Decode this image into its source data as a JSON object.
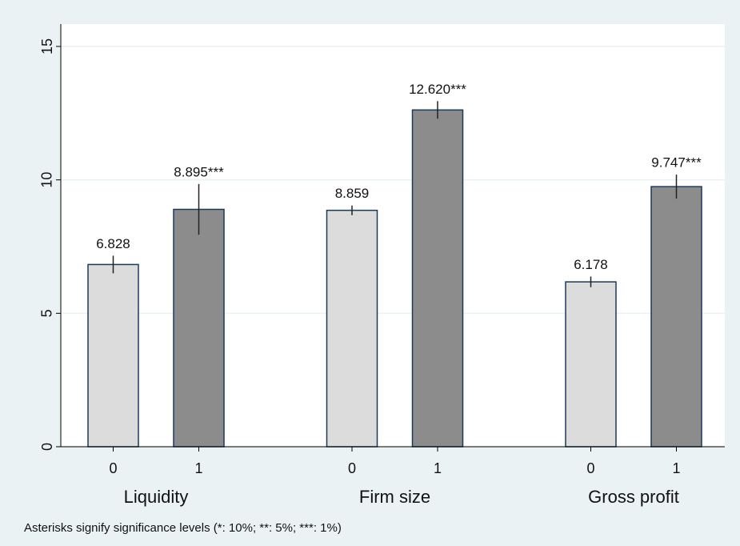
{
  "chart_data": {
    "type": "bar",
    "categories": [
      "Liquidity",
      "Firm size",
      "Gross profit"
    ],
    "series": [
      {
        "name": "0",
        "color": "#dcdcdc",
        "values": [
          6.828,
          8.859,
          6.178
        ],
        "value_labels": [
          "6.828",
          "8.859",
          "6.178"
        ],
        "errors": [
          0.33,
          0.18,
          0.2
        ]
      },
      {
        "name": "1",
        "color": "#8c8c8c",
        "values": [
          8.895,
          12.62,
          9.747
        ],
        "value_labels": [
          "8.895***",
          "12.620***",
          "9.747***"
        ],
        "errors": [
          0.95,
          0.33,
          0.45
        ]
      }
    ],
    "ylim": [
      0,
      15
    ],
    "yticks": [
      0,
      5,
      10,
      15
    ],
    "grid": true,
    "note": "Asterisks signify significance levels (*: 10%; **: 5%; ***: 1%)"
  }
}
